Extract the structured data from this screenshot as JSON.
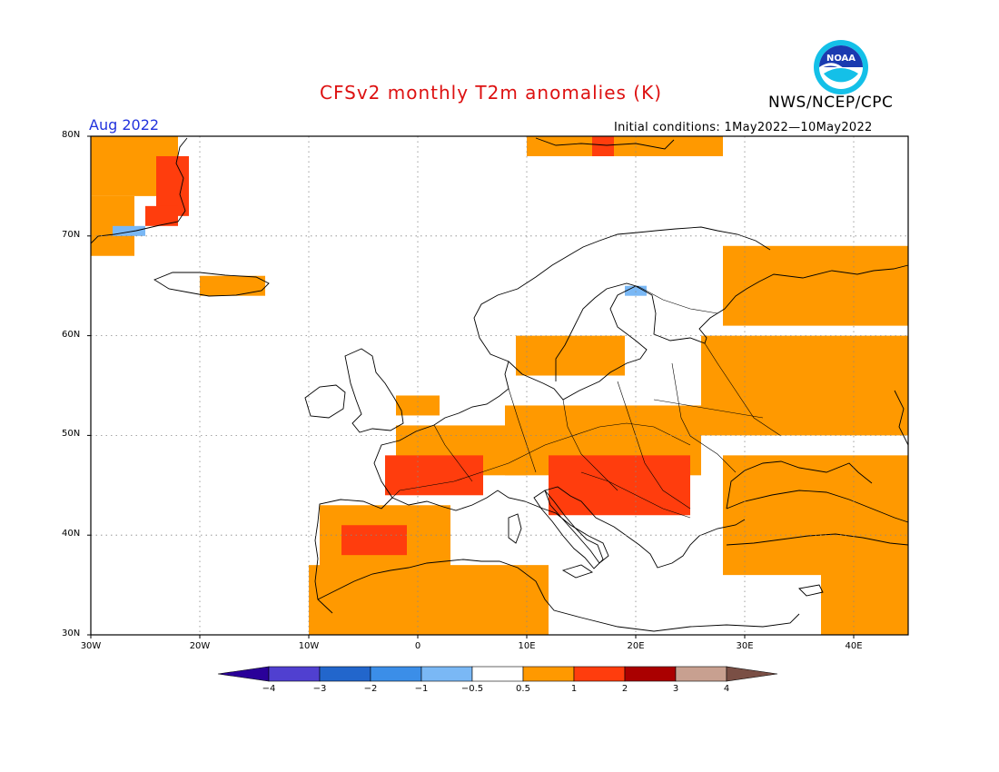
{
  "title": "CFSv2 monthly T2m anomalies (K)",
  "org": "NWS/NCEP/CPC",
  "month": "Aug 2022",
  "initial_conditions": "Initial conditions: 1May2022—10May2022",
  "logo_text": "NOAA",
  "map": {
    "lon_range": [
      -30,
      45
    ],
    "lat_range": [
      30,
      80
    ],
    "lat_labels": [
      "80N",
      "70N",
      "60N",
      "50N",
      "40N",
      "30N"
    ],
    "lon_labels": [
      "30W",
      "20W",
      "10W",
      "0",
      "10E",
      "20E",
      "30E",
      "40E"
    ],
    "grid": "dotted"
  },
  "colorbar": {
    "colors": [
      "#2a0099",
      "#5040d0",
      "#2266cc",
      "#3b8ee8",
      "#7ab8f5",
      "#ffffff",
      "#ff9900",
      "#ff3d0d",
      "#aa0000",
      "#c8a090",
      "#7a4f45"
    ],
    "labels": [
      "−4",
      "−3",
      "−2",
      "−1",
      "−0.5",
      "0.5",
      "1",
      "2",
      "3",
      "4"
    ]
  },
  "colors": {
    "orange": "#ff9900",
    "red": "#ff3d0d",
    "light_blue": "#7ab8f5"
  },
  "anomaly_regions": [
    {
      "level": "0.5-1",
      "lon": [
        -30,
        -22
      ],
      "lat": [
        74,
        80
      ]
    },
    {
      "level": "0.5-1",
      "lon": [
        -30,
        -26
      ],
      "lat": [
        68,
        74
      ]
    },
    {
      "level": "1-2",
      "lon": [
        -24,
        -21
      ],
      "lat": [
        72,
        78
      ]
    },
    {
      "level": "1-2",
      "lon": [
        -25,
        -22
      ],
      "lat": [
        71,
        73
      ]
    },
    {
      "level": "-1--0.5",
      "lon": [
        -28,
        -25
      ],
      "lat": [
        70,
        71
      ]
    },
    {
      "level": "0.5-1",
      "lon": [
        -20,
        -14
      ],
      "lat": [
        64,
        66
      ]
    },
    {
      "level": "0.5-1",
      "lon": [
        10,
        28
      ],
      "lat": [
        78,
        80
      ]
    },
    {
      "level": "1-2",
      "lon": [
        16,
        18
      ],
      "lat": [
        78,
        80
      ]
    },
    {
      "level": "0.5-1",
      "lon": [
        28,
        45
      ],
      "lat": [
        61,
        69
      ]
    },
    {
      "level": "0.5-1",
      "lon": [
        26,
        45
      ],
      "lat": [
        50,
        60
      ]
    },
    {
      "level": "0.5-1",
      "lon": [
        8,
        26
      ],
      "lat": [
        46,
        53
      ]
    },
    {
      "level": "0.5-1",
      "lon": [
        -2,
        10
      ],
      "lat": [
        46,
        51
      ]
    },
    {
      "level": "1-2",
      "lon": [
        -3,
        6
      ],
      "lat": [
        44,
        48
      ]
    },
    {
      "level": "0.5-1",
      "lon": [
        -9,
        3
      ],
      "lat": [
        36,
        43
      ]
    },
    {
      "level": "1-2",
      "lon": [
        -7,
        -1
      ],
      "lat": [
        38,
        41
      ]
    },
    {
      "level": "0.5-1",
      "lon": [
        -10,
        12
      ],
      "lat": [
        30,
        37
      ]
    },
    {
      "level": "1-2",
      "lon": [
        12,
        25
      ],
      "lat": [
        42,
        48
      ]
    },
    {
      "level": "0.5-1",
      "lon": [
        28,
        45
      ],
      "lat": [
        36,
        48
      ]
    },
    {
      "level": "0.5-1",
      "lon": [
        37,
        45
      ],
      "lat": [
        30,
        38
      ]
    },
    {
      "level": "0.5-1",
      "lon": [
        9,
        19
      ],
      "lat": [
        56,
        60
      ]
    },
    {
      "level": "0.5-1",
      "lon": [
        -2,
        2
      ],
      "lat": [
        52,
        54
      ]
    },
    {
      "level": "-1--0.5",
      "lon": [
        19,
        21
      ],
      "lat": [
        64,
        65
      ]
    }
  ]
}
